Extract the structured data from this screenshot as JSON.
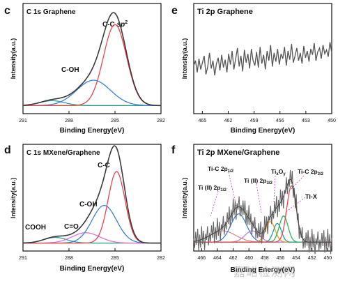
{
  "watermark_text": "嘉峪检测网",
  "colors": {
    "envelope": "#3a3a3a",
    "cc": "#e8454d",
    "coh": "#3d7fd6",
    "cdo": "#e36fd9",
    "cooh": "#22a39a",
    "baseline": "#f0c419",
    "tix": "#2fb15a",
    "tic32": "#e8454d",
    "tiii32": "#f0a020",
    "tic12": "#3b7fd6",
    "tiii12": "#b784e0",
    "other": "#e08a8a"
  },
  "chart_data": [
    {
      "panel": "c",
      "type": "line",
      "title": "C 1s  Graphene",
      "xlabel": "Binding Energy(eV)",
      "ylabel": "Intensity(a.u.)",
      "xlim": [
        291,
        282
      ],
      "xticks": [
        291,
        288,
        285,
        282
      ],
      "baseline": 0.04,
      "annotations": [
        "C-C sp2",
        "C-OH"
      ],
      "series": [
        {
          "key": "cooh",
          "center": 289.1,
          "width": 0.8,
          "amp": 0.05
        },
        {
          "key": "coh",
          "center": 286.4,
          "width": 1.1,
          "amp": 0.26
        },
        {
          "key": "cc",
          "center": 285.0,
          "width": 0.75,
          "amp": 0.83
        }
      ]
    },
    {
      "panel": "d",
      "type": "line",
      "title": "C 1s  MXene/Graphene",
      "xlabel": "Binding Energy(eV)",
      "ylabel": "Intensity(a.u.)",
      "xlim": [
        291,
        282
      ],
      "xticks": [
        291,
        288,
        285,
        282
      ],
      "baseline": 0.04,
      "annotations": [
        "C-C",
        "C-OH",
        "C=O",
        "COOH"
      ],
      "series": [
        {
          "key": "cooh",
          "center": 288.9,
          "width": 0.75,
          "amp": 0.06
        },
        {
          "key": "cdo",
          "center": 286.9,
          "width": 0.9,
          "amp": 0.11
        },
        {
          "key": "coh",
          "center": 285.7,
          "width": 0.8,
          "amp": 0.4
        },
        {
          "key": "cc",
          "center": 284.9,
          "width": 0.55,
          "amp": 0.76
        }
      ]
    },
    {
      "panel": "e",
      "type": "line",
      "title": "Ti 2p   Graphene",
      "xlabel": "Binding Energy(eV)",
      "ylabel": "Intensity(a.u.)",
      "xlim": [
        466,
        450
      ],
      "xticks": [
        465,
        462,
        459,
        456,
        453,
        450
      ],
      "noise": [
        0.45,
        0.5,
        0.38,
        0.52,
        0.41,
        0.48,
        0.55,
        0.36,
        0.44,
        0.58,
        0.42,
        0.5,
        0.35,
        0.47,
        0.53,
        0.4,
        0.56,
        0.43,
        0.51,
        0.38,
        0.57,
        0.46,
        0.6,
        0.41,
        0.52,
        0.63,
        0.44,
        0.55,
        0.39,
        0.61,
        0.48,
        0.57,
        0.42,
        0.62,
        0.5,
        0.45,
        0.59,
        0.43,
        0.64,
        0.47,
        0.56,
        0.41,
        0.6,
        0.5,
        0.66,
        0.44,
        0.58,
        0.49,
        0.62,
        0.46,
        0.57,
        0.52,
        0.64,
        0.45,
        0.6,
        0.51,
        0.67,
        0.48,
        0.55,
        0.63,
        0.5,
        0.58,
        0.47,
        0.65,
        0.53,
        0.6,
        0.49,
        0.62,
        0.56,
        0.68,
        0.5,
        0.59,
        0.63,
        0.52,
        0.66,
        0.57,
        0.61,
        0.54,
        0.69,
        0.58
      ]
    },
    {
      "panel": "f",
      "type": "line",
      "title": "Ti 2p  MXene/Graphene",
      "xlabel": "Binding Energy(eV)",
      "ylabel": "Intensity(a.u.)",
      "xlim": [
        467,
        449.5
      ],
      "xticks": [
        466,
        464,
        462,
        460,
        458,
        456,
        454,
        452,
        450
      ],
      "baseline": 0.05,
      "annotations": [
        "Ti-C 2p1/2",
        "Ti (II) 2p3/2",
        "TixOy",
        "Ti-C 2p3/2",
        "Ti (II) 2p1/2",
        "Ti-X"
      ],
      "series": [
        {
          "key": "other",
          "center": 463.3,
          "width": 1.6,
          "amp": 0.12
        },
        {
          "key": "tic12",
          "center": 461.3,
          "width": 1.0,
          "amp": 0.3
        },
        {
          "key": "tiii12",
          "center": 459.6,
          "width": 0.9,
          "amp": 0.12
        },
        {
          "key": "tiii32",
          "center": 457.3,
          "width": 0.6,
          "amp": 0.22
        },
        {
          "key": "cooh",
          "center": 456.4,
          "width": 0.5,
          "amp": 0.2
        },
        {
          "key": "tix",
          "center": 455.6,
          "width": 0.55,
          "amp": 0.28
        },
        {
          "key": "tic32",
          "center": 454.6,
          "width": 0.6,
          "amp": 0.6
        }
      ]
    }
  ]
}
